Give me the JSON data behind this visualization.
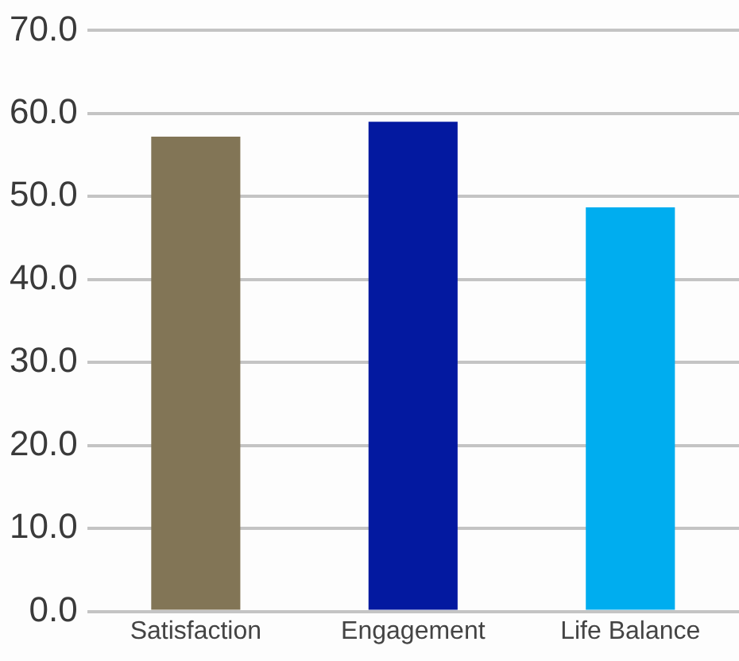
{
  "chart_data": {
    "type": "bar",
    "categories": [
      "Satisfaction",
      "Engagement",
      "Life Balance"
    ],
    "values": [
      57.2,
      59.0,
      48.7
    ],
    "colors": [
      "#827556",
      "#0319a0",
      "#00adef"
    ],
    "ylim": [
      0,
      70
    ],
    "yticks": [
      {
        "value": 0,
        "label": "0.0"
      },
      {
        "value": 10,
        "label": "10.0"
      },
      {
        "value": 20,
        "label": "20.0"
      },
      {
        "value": 30,
        "label": "30.0"
      },
      {
        "value": 40,
        "label": "40.0"
      },
      {
        "value": 50,
        "label": "50.0"
      },
      {
        "value": 60,
        "label": "60.0"
      },
      {
        "value": 70,
        "label": "70.0"
      }
    ],
    "grid": "y",
    "legend": false
  }
}
